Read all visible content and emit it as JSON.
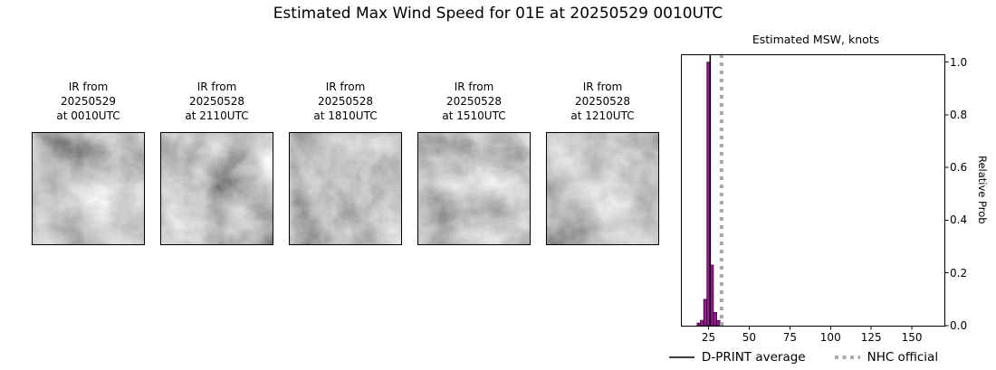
{
  "figure": {
    "title": "Estimated Max Wind Speed for 01E at 20250529 0010UTC"
  },
  "panels": [
    {
      "line1": "IR from",
      "line2": "20250529",
      "line3": "at 0010UTC"
    },
    {
      "line1": "IR from",
      "line2": "20250528",
      "line3": "at 2110UTC"
    },
    {
      "line1": "IR from",
      "line2": "20250528",
      "line3": "at 1810UTC"
    },
    {
      "line1": "IR from",
      "line2": "20250528",
      "line3": "at 1510UTC"
    },
    {
      "line1": "IR from",
      "line2": "20250528",
      "line3": "at 1210UTC"
    }
  ],
  "chart_data": {
    "type": "bar",
    "title": "Estimated MSW, knots",
    "ylabel": "Relative Prob",
    "xlim": [
      8,
      170
    ],
    "ylim": [
      0,
      1.03
    ],
    "xticks": [
      25,
      50,
      75,
      100,
      125,
      150
    ],
    "yticks": [
      0.0,
      0.2,
      0.4,
      0.6,
      0.8,
      1.0
    ],
    "bin_width": 2,
    "bar_color": "#951b8f",
    "bar_edge_color": "#30052e",
    "bins": [
      {
        "knots": 19,
        "prob": 0.01
      },
      {
        "knots": 21,
        "prob": 0.02
      },
      {
        "knots": 23,
        "prob": 0.1
      },
      {
        "knots": 25,
        "prob": 1.0
      },
      {
        "knots": 27,
        "prob": 0.23
      },
      {
        "knots": 29,
        "prob": 0.05
      },
      {
        "knots": 31,
        "prob": 0.02
      },
      {
        "knots": 33,
        "prob": 0.01
      }
    ],
    "dprint_average_knots": 26,
    "nhc_official_knots": 33,
    "legend": [
      {
        "label": "D-PRINT average",
        "line_style": "solid",
        "color": "#000000"
      },
      {
        "label": "NHC official",
        "line_style": "dotted",
        "color": "#a9a9a9"
      }
    ]
  }
}
